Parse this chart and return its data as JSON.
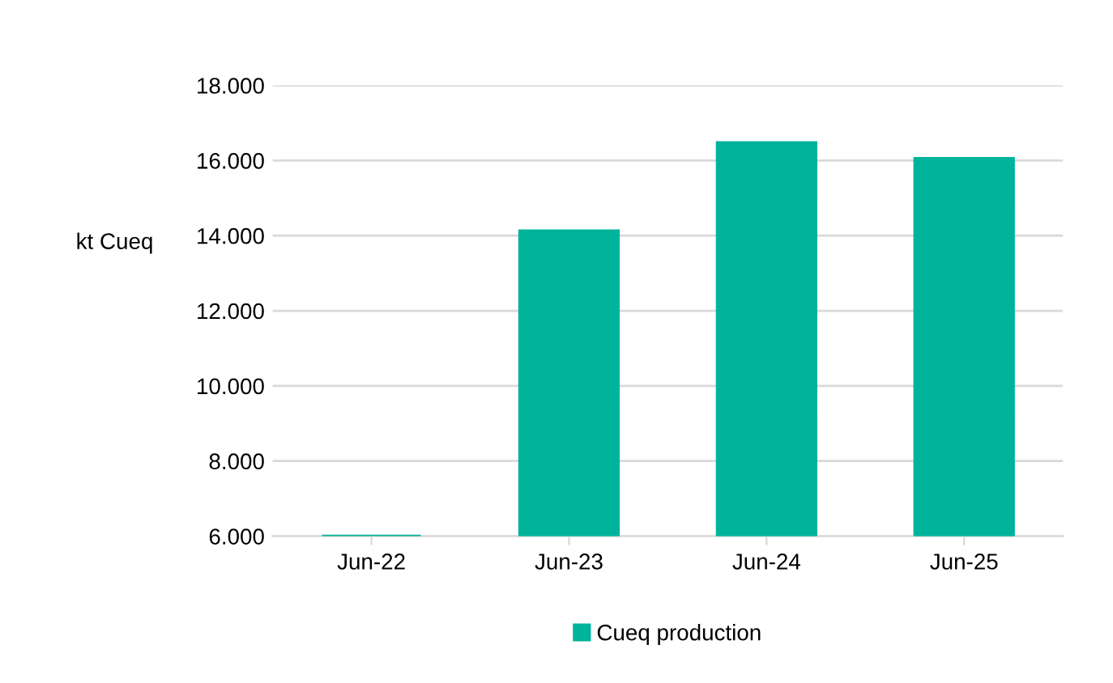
{
  "chart_data": {
    "type": "bar",
    "ylabel": "kt Cueq",
    "categories": [
      "Jun-22",
      "Jun-23",
      "Jun-24",
      "Jun-25"
    ],
    "series": [
      {
        "name": "Cueq production",
        "color": "#00b39b",
        "values": [
          6000,
          14130,
          16480,
          16060
        ]
      }
    ],
    "ylim": [
      6000,
      18000
    ],
    "yticks": [
      {
        "value": 6000,
        "label": "6.000"
      },
      {
        "value": 8000,
        "label": "8.000"
      },
      {
        "value": 10000,
        "label": "10.000"
      },
      {
        "value": 12000,
        "label": "12.000"
      },
      {
        "value": 14000,
        "label": "14.000"
      },
      {
        "value": 16000,
        "label": "16.000"
      },
      {
        "value": 18000,
        "label": "18.000"
      }
    ],
    "grid": "y",
    "legend": "bottom"
  }
}
